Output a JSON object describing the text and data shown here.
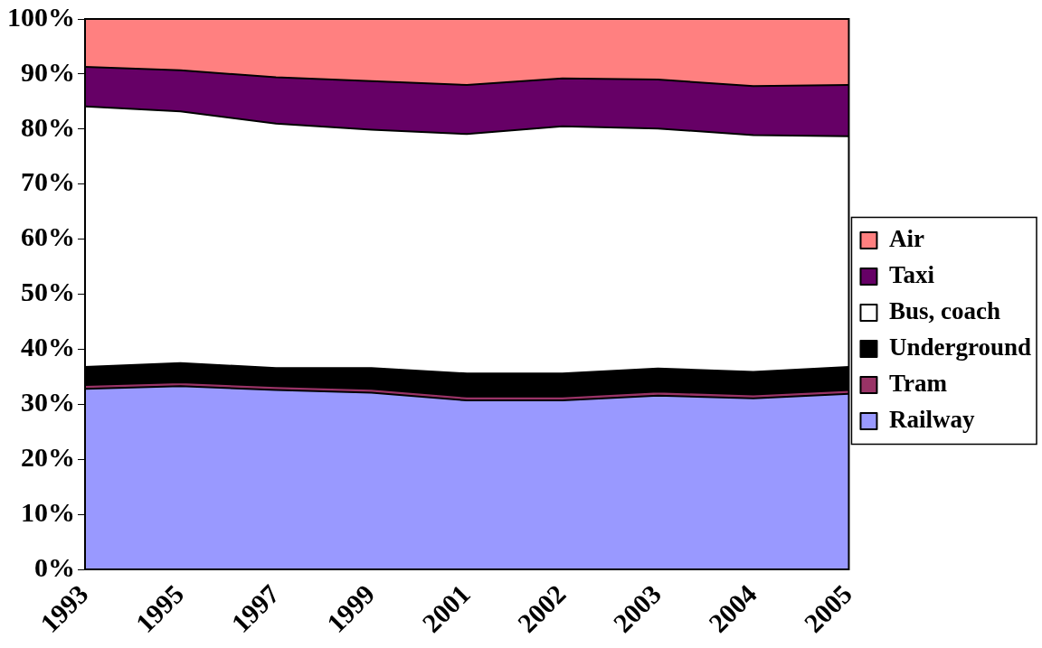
{
  "chart_data": {
    "type": "area",
    "stacked": true,
    "categories": [
      "1993",
      "1995",
      "1997",
      "1999",
      "2001",
      "2002",
      "2003",
      "2004",
      "2005"
    ],
    "series": [
      {
        "name": "Railway",
        "color": "#9999ff",
        "values": [
          32.8,
          33.3,
          32.6,
          32.1,
          30.7,
          30.7,
          31.6,
          31.1,
          31.9
        ]
      },
      {
        "name": "Tram",
        "color": "#993366",
        "values": [
          0.7,
          0.7,
          0.7,
          0.7,
          0.7,
          0.7,
          0.7,
          0.7,
          0.7
        ]
      },
      {
        "name": "Underground",
        "color": "#000000",
        "values": [
          3.3,
          3.5,
          3.3,
          3.8,
          4.2,
          4.2,
          4.2,
          4.1,
          4.2
        ]
      },
      {
        "name": "Bus, coach",
        "color": "#ffffff",
        "values": [
          47.3,
          45.7,
          44.4,
          43.3,
          43.5,
          44.9,
          43.6,
          43.0,
          41.9
        ]
      },
      {
        "name": "Taxi",
        "color": "#660066",
        "values": [
          7.2,
          7.5,
          8.4,
          8.8,
          8.9,
          8.7,
          8.9,
          8.9,
          9.3
        ]
      },
      {
        "name": "Air",
        "color": "#ff8080",
        "values": [
          8.7,
          9.3,
          10.6,
          11.3,
          12.0,
          10.8,
          11.0,
          12.2,
          12.0
        ]
      }
    ],
    "ylim": [
      0,
      100
    ],
    "yticks": [
      {
        "value": 0,
        "label": "0%"
      },
      {
        "value": 10,
        "label": "10%"
      },
      {
        "value": 20,
        "label": "20%"
      },
      {
        "value": 30,
        "label": "30%"
      },
      {
        "value": 40,
        "label": "40%"
      },
      {
        "value": 50,
        "label": "50%"
      },
      {
        "value": 60,
        "label": "60%"
      },
      {
        "value": 70,
        "label": "70%"
      },
      {
        "value": 80,
        "label": "80%"
      },
      {
        "value": 90,
        "label": "90%"
      },
      {
        "value": 100,
        "label": "100%"
      }
    ],
    "grid": false,
    "legend": "right",
    "marker": "none",
    "line_style": "solid"
  }
}
